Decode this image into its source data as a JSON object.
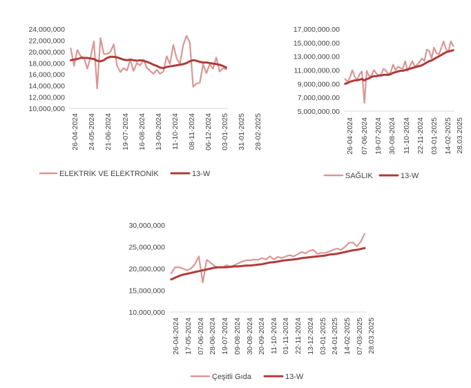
{
  "chart_data": [
    {
      "type": "line",
      "title": "",
      "xlabel": "",
      "ylabel": "",
      "ylim": [
        10000000,
        24000000
      ],
      "yticks": [
        "24,000,000",
        "22,000,000",
        "20,000,000",
        "18,000,000",
        "16,000,000",
        "14,000,000",
        "12,000,000",
        "10,000,000"
      ],
      "xticks": [
        "26-04-2024",
        "24-05-2024",
        "21-06-2024",
        "19-07-2024",
        "16-08-2024",
        "13-09-2024",
        "11-10-2024",
        "08-11-2024",
        "06-12-2024",
        "03-01-2025",
        "31-01-2025",
        "28-02-2025"
      ],
      "grid": false,
      "legend": "bottom",
      "series": [
        {
          "name": "ELEKTRİK VE ELEKTRONİK",
          "color": "#d99694",
          "values": [
            20600000,
            17500000,
            20300000,
            19200000,
            18900000,
            17000000,
            19000000,
            21800000,
            13500000,
            22400000,
            19600000,
            19600000,
            20000000,
            21300000,
            17500000,
            16400000,
            17100000,
            16700000,
            18600000,
            16600000,
            18000000,
            17600000,
            18600000,
            17200000,
            16600000,
            16100000,
            16800000,
            16100000,
            16500000,
            19200000,
            17800000,
            21200000,
            18900000,
            17800000,
            21200000,
            22800000,
            21600000,
            13800000,
            14400000,
            14500000,
            17800000,
            16200000,
            17800000,
            17000000,
            19000000,
            16500000,
            17100000,
            16900000
          ]
        },
        {
          "name": "13-W",
          "color": "#b03a3a",
          "values": [
            18500000,
            18600000,
            18700000,
            18900000,
            18900000,
            18900000,
            18800000,
            18700000,
            18400000,
            18300000,
            18500000,
            18900000,
            19100000,
            19100000,
            19000000,
            18800000,
            18600000,
            18500000,
            18600000,
            18500000,
            18400000,
            18500000,
            18400000,
            18200000,
            18000000,
            17700000,
            17500000,
            17200000,
            17100000,
            17300000,
            17400000,
            17500000,
            17600000,
            17700000,
            17800000,
            18000000,
            18300000,
            18500000,
            18400000,
            18200000,
            18100000,
            18100000,
            18000000,
            17900000,
            17800000,
            17700000,
            17500000,
            17200000
          ]
        }
      ]
    },
    {
      "type": "line",
      "title": "",
      "xlabel": "",
      "ylabel": "",
      "ylim": [
        5000000,
        17000000
      ],
      "yticks": [
        "17,000,000.00",
        "15,000,000.00",
        "13,000,000.00",
        "11,000,000.00",
        "9,000,000.00",
        "7,000,000.00",
        "5,000,000.00"
      ],
      "xticks": [
        "26-04-2024",
        "07-06-2024",
        "19-07-2024",
        "30-08-2024",
        "11-10-2024",
        "22-11-2024",
        "03-01-2025",
        "14-02-2025",
        "28.03.2025"
      ],
      "grid": false,
      "legend": "bottom",
      "series": [
        {
          "name": "SAĞLIK",
          "color": "#d99694",
          "values": [
            9700000,
            9300000,
            9900000,
            11000000,
            10000000,
            9600000,
            10400000,
            10800000,
            6200000,
            10900000,
            10100000,
            10200000,
            11000000,
            10500000,
            10200000,
            10400000,
            11200000,
            10900000,
            10400000,
            10700000,
            11800000,
            11000000,
            11500000,
            11300000,
            11200000,
            12300000,
            10900000,
            11600000,
            12300000,
            11500000,
            11800000,
            12200000,
            12700000,
            12300000,
            14000000,
            13800000,
            12700000,
            14300000,
            13500000,
            13300000,
            14200000,
            15200000,
            14100000,
            13700000,
            15200000,
            14500000
          ]
        },
        {
          "name": "13-W",
          "color": "#b03a3a",
          "values": [
            9000000,
            9100000,
            9300000,
            9400000,
            9500000,
            9500000,
            9600000,
            9700000,
            9500000,
            9700000,
            9800000,
            10000000,
            10100000,
            10100000,
            10200000,
            10200000,
            10300000,
            10300000,
            10300000,
            10400000,
            10600000,
            10700000,
            10800000,
            10900000,
            10900000,
            11000000,
            11100000,
            11200000,
            11300000,
            11400000,
            11500000,
            11600000,
            11700000,
            11900000,
            12100000,
            12300000,
            12400000,
            12600000,
            12800000,
            13000000,
            13200000,
            13400000,
            13600000,
            13700000,
            13800000,
            13900000
          ]
        }
      ]
    },
    {
      "type": "line",
      "title": "",
      "xlabel": "",
      "ylabel": "",
      "ylim": [
        10000000,
        30000000
      ],
      "yticks": [
        "30,000,000",
        "25,000,000",
        "20,000,000",
        "15,000,000",
        "10,000,000"
      ],
      "xticks": [
        "26-04-2024",
        "17-05-2024",
        "07-06-2024",
        "28-06-2024",
        "19-07-2024",
        "09-08-2024",
        "30-08-2024",
        "20-09-2024",
        "11-10-2024",
        "01-11-2024",
        "22-11-2024",
        "13-12-2024",
        "03-01-2025",
        "24-01-2025",
        "14-02-2025",
        "07-03-2025",
        "28.03.2025"
      ],
      "grid": false,
      "legend": "bottom",
      "series": [
        {
          "name": "Çeşitli Gıda",
          "color": "#d99694",
          "values": [
            18900000,
            20300000,
            20300000,
            20000000,
            19600000,
            20000000,
            21000000,
            22800000,
            16800000,
            22000000,
            21300000,
            20600000,
            20200000,
            20200000,
            20800000,
            20400000,
            20800000,
            21200000,
            21600000,
            21900000,
            21900000,
            22100000,
            22000000,
            22400000,
            22100000,
            22800000,
            22100000,
            22700000,
            22400000,
            22800000,
            23100000,
            22800000,
            23300000,
            23800000,
            23500000,
            24100000,
            24300000,
            23400000,
            23600000,
            23600000,
            23900000,
            24300000,
            24600000,
            24300000,
            25000000,
            25900000,
            26000000,
            25100000,
            26200000,
            28000000
          ]
        },
        {
          "name": "13-W",
          "color": "#b03a3a",
          "values": [
            17500000,
            17900000,
            18300000,
            18600000,
            18800000,
            19000000,
            19200000,
            19400000,
            19600000,
            19800000,
            20000000,
            20200000,
            20300000,
            20300000,
            20300000,
            20400000,
            20500000,
            20500000,
            20600000,
            20700000,
            20700000,
            20800000,
            20900000,
            21000000,
            21200000,
            21400000,
            21500000,
            21600000,
            21800000,
            21900000,
            22000000,
            22100000,
            22200000,
            22400000,
            22500000,
            22600000,
            22700000,
            22800000,
            22900000,
            23000000,
            23200000,
            23300000,
            23400000,
            23600000,
            23800000,
            24000000,
            24200000,
            24300000,
            24500000,
            24700000
          ]
        }
      ]
    }
  ]
}
